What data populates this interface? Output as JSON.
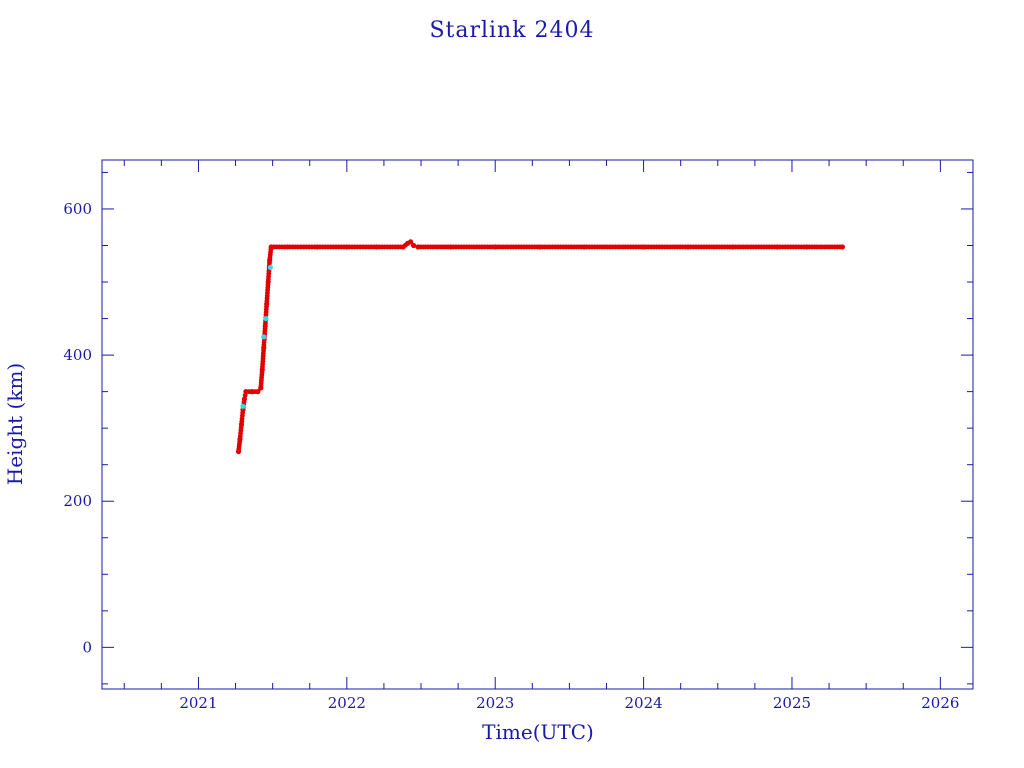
{
  "chart_data": {
    "type": "scatter",
    "title": "Starlink 2404",
    "xlabel": "Time(UTC)",
    "ylabel": "Height (km)",
    "xlim": [
      2020.35,
      2026.22
    ],
    "ylim": [
      -57,
      667
    ],
    "x_ticks": [
      2021,
      2022,
      2023,
      2024,
      2025,
      2026
    ],
    "y_ticks": [
      0,
      200,
      400,
      600
    ],
    "x_minor_step": 0.25,
    "y_minor_step": 50,
    "grid": false,
    "colors": {
      "axis": "#1a1aa6",
      "primary": "#e00000",
      "highlight": "#33dddd"
    },
    "series": [
      {
        "color": "#e00000",
        "points": [
          [
            2021.27,
            268
          ],
          [
            2021.28,
            285
          ],
          [
            2021.29,
            305
          ],
          [
            2021.3,
            325
          ],
          [
            2021.31,
            340
          ],
          [
            2021.32,
            350
          ],
          [
            2021.36,
            350
          ],
          [
            2021.4,
            350
          ],
          [
            2021.42,
            355
          ],
          [
            2021.43,
            380
          ],
          [
            2021.44,
            410
          ],
          [
            2021.45,
            440
          ],
          [
            2021.46,
            470
          ],
          [
            2021.47,
            500
          ],
          [
            2021.48,
            530
          ],
          [
            2021.49,
            548
          ],
          [
            2021.6,
            548
          ],
          [
            2021.8,
            548
          ],
          [
            2022.0,
            548
          ],
          [
            2022.2,
            548
          ],
          [
            2022.38,
            548
          ],
          [
            2022.41,
            553
          ],
          [
            2022.43,
            555
          ],
          [
            2022.45,
            550
          ],
          [
            2022.48,
            548
          ],
          [
            2022.7,
            548
          ],
          [
            2023.0,
            548
          ],
          [
            2023.3,
            548
          ],
          [
            2023.6,
            548
          ],
          [
            2024.0,
            548
          ],
          [
            2024.3,
            548
          ],
          [
            2024.6,
            548
          ],
          [
            2024.9,
            548
          ],
          [
            2025.1,
            548
          ],
          [
            2025.34,
            548
          ]
        ]
      },
      {
        "color": "#33dddd",
        "points": [
          [
            2021.3,
            330
          ],
          [
            2021.44,
            425
          ],
          [
            2021.455,
            450
          ],
          [
            2021.485,
            520
          ]
        ]
      }
    ]
  }
}
